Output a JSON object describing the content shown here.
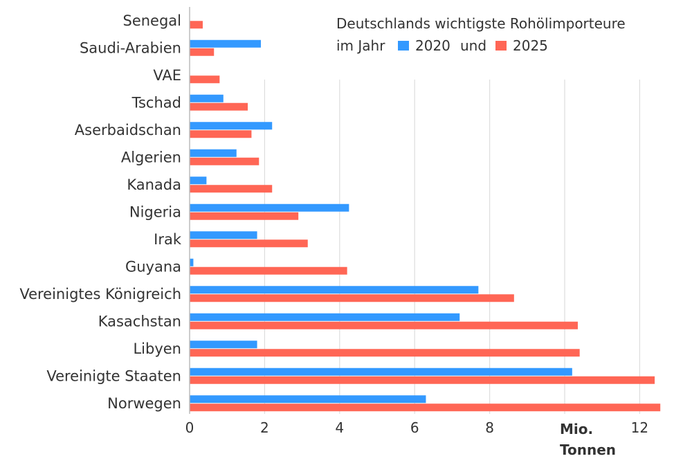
{
  "chart_data": {
    "type": "bar",
    "orientation": "horizontal",
    "title_line1": "Deutschlands wichtigste Rohölimporteure",
    "title_line2_prefix": "im Jahr",
    "legend_connector": "und",
    "categories": [
      "Norwegen",
      "Vereinigte Staaten",
      "Libyen",
      "Kasachstan",
      "Vereinigtes Königreich",
      "Guyana",
      "Irak",
      "Nigeria",
      "Kanada",
      "Algerien",
      "Aserbaidschan",
      "Tschad",
      "VAE",
      "Saudi-Arabien",
      "Senegal"
    ],
    "series": [
      {
        "name": "2020",
        "color": "#3399ff",
        "values": [
          6.3,
          10.2,
          1.8,
          7.2,
          7.7,
          0.1,
          1.8,
          4.25,
          0.45,
          1.25,
          2.2,
          0.9,
          0,
          1.9,
          0
        ]
      },
      {
        "name": "2025",
        "color": "#ff6655",
        "values": [
          12.55,
          12.4,
          10.4,
          10.35,
          8.65,
          4.2,
          3.15,
          2.9,
          2.2,
          1.85,
          1.65,
          1.55,
          0.8,
          0.65,
          0.35
        ]
      }
    ],
    "xticks": [
      "0",
      "2",
      "4",
      "6",
      "8",
      "12"
    ],
    "xtick_values": [
      0,
      2,
      4,
      6,
      8,
      12
    ],
    "xunit_line1": "Mio.",
    "xunit_line2": "Tonnen",
    "xlim": [
      0,
      12.6
    ],
    "grid": true,
    "legend_position": "top-right"
  }
}
